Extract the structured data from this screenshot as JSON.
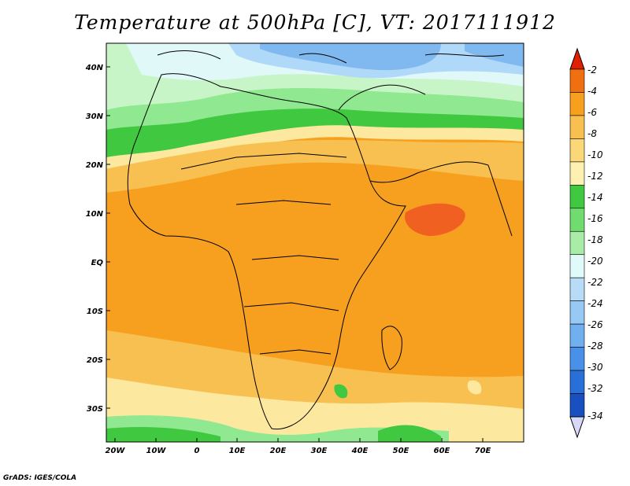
{
  "title": "Temperature at 500hPa [C], VT: 2017111912",
  "credit": "GrADS: IGES/COLA",
  "map": {
    "lat_labels": [
      "40N",
      "30N",
      "20N",
      "10N",
      "EQ",
      "10S",
      "20S",
      "30S"
    ],
    "lon_labels": [
      "20W",
      "10W",
      "0",
      "10E",
      "20E",
      "30E",
      "40E",
      "50E",
      "60E",
      "70E"
    ],
    "colors": {
      "very_warm": "#f06020",
      "warm": "#f7a020",
      "mild": "#f8c050",
      "pale": "#fde8a0",
      "green": "#40c840",
      "lightgreen": "#90e890",
      "palegreen": "#c8f5c8",
      "cyan": "#e0f8f8",
      "lightblue": "#b0d8f8",
      "blue": "#80b8f0"
    }
  },
  "colorbar": {
    "labels": [
      "-2",
      "-4",
      "-6",
      "-8",
      "-10",
      "-12",
      "-14",
      "-16",
      "-18",
      "-20",
      "-22",
      "-24",
      "-26",
      "-28",
      "-30",
      "-32",
      "-34"
    ],
    "colors": [
      "#f04010",
      "#f07010",
      "#f7a020",
      "#f8c050",
      "#fad878",
      "#fdf0b0",
      "#40c840",
      "#70dc70",
      "#a8eca8",
      "#e0fafa",
      "#b8dcf8",
      "#98c8f4",
      "#70b0f0",
      "#4890e8",
      "#2870d8",
      "#1850c0",
      "#081070"
    ],
    "top_arrow_color": "#e02000",
    "bottom_arrow_color": "#d8d8f8"
  }
}
